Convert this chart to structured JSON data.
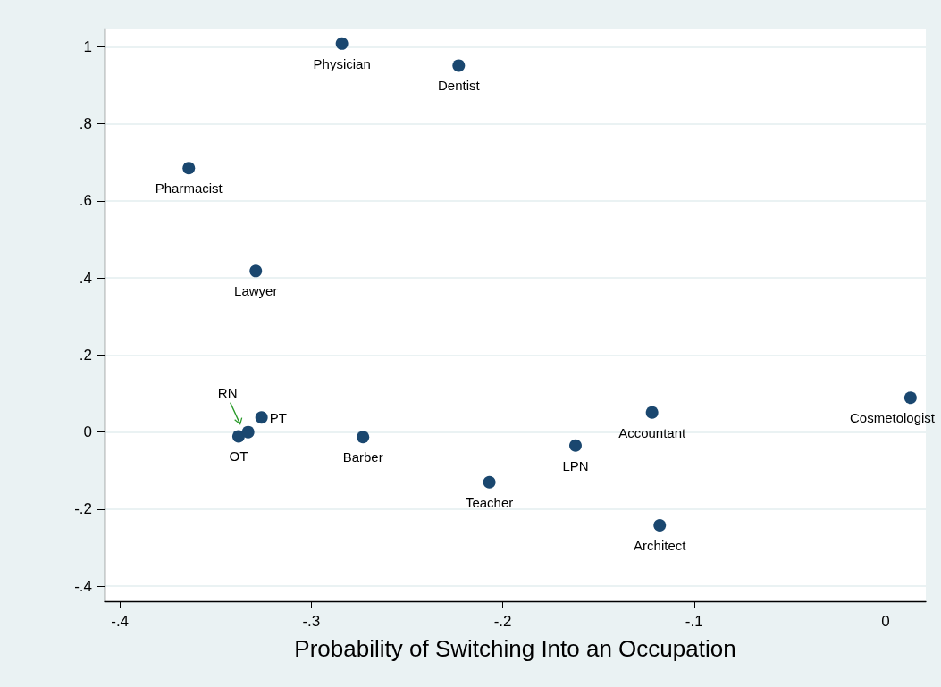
{
  "chart_data": {
    "type": "scatter",
    "xlabel": "Probability of Switching Into an Occupation",
    "series": [
      {
        "name": "Physician",
        "color": "#1a476f",
        "x": [
          -0.284
        ],
        "values": [
          1.008
        ]
      },
      {
        "name": "Dentist",
        "color": "#1a476f",
        "x": [
          -0.223
        ],
        "values": [
          0.951
        ]
      },
      {
        "name": "Pharmacist",
        "color": "#1a476f",
        "x": [
          -0.364
        ],
        "values": [
          0.685
        ]
      },
      {
        "name": "Lawyer",
        "color": "#1a476f",
        "x": [
          -0.329
        ],
        "values": [
          0.418
        ]
      },
      {
        "name": "OT",
        "color": "#1a476f",
        "x": [
          -0.338
        ],
        "values": [
          -0.011
        ]
      },
      {
        "name": "RN",
        "color": "#1a476f",
        "x": [
          -0.333
        ],
        "values": [
          0.0
        ]
      },
      {
        "name": "PT",
        "color": "#1a476f",
        "x": [
          -0.326
        ],
        "values": [
          0.038
        ]
      },
      {
        "name": "Barber",
        "color": "#1a476f",
        "x": [
          -0.273
        ],
        "values": [
          -0.013
        ]
      },
      {
        "name": "Teacher",
        "color": "#1a476f",
        "x": [
          -0.207
        ],
        "values": [
          -0.13
        ]
      },
      {
        "name": "LPN",
        "color": "#1a476f",
        "x": [
          -0.162
        ],
        "values": [
          -0.035
        ]
      },
      {
        "name": "Accountant",
        "color": "#1a476f",
        "x": [
          -0.122
        ],
        "values": [
          0.051
        ]
      },
      {
        "name": "Architect",
        "color": "#1a476f",
        "x": [
          -0.118
        ],
        "values": [
          -0.242
        ]
      },
      {
        "name": "Cosmetologist",
        "color": "#1a476f",
        "x": [
          0.013
        ],
        "values": [
          0.089
        ]
      }
    ],
    "xlim": [
      -0.408,
      0.021
    ],
    "ylim": [
      -0.439,
      1.047
    ],
    "xticks": [
      {
        "value": -0.4,
        "label": "-.4"
      },
      {
        "value": -0.3,
        "label": "-.3"
      },
      {
        "value": -0.2,
        "label": "-.2"
      },
      {
        "value": -0.1,
        "label": "-.1"
      },
      0
    ],
    "yticks": [
      {
        "value": -0.4,
        "label": "-.4"
      },
      {
        "value": -0.2,
        "label": "-.2"
      },
      0,
      {
        "value": 0.2,
        "label": ".2"
      },
      {
        "value": 0.4,
        "label": ".4"
      },
      {
        "value": 0.6,
        "label": ".6"
      },
      {
        "value": 0.8,
        "label": ".8"
      },
      1
    ],
    "grid": "y",
    "marker": "circle",
    "legend": false
  }
}
